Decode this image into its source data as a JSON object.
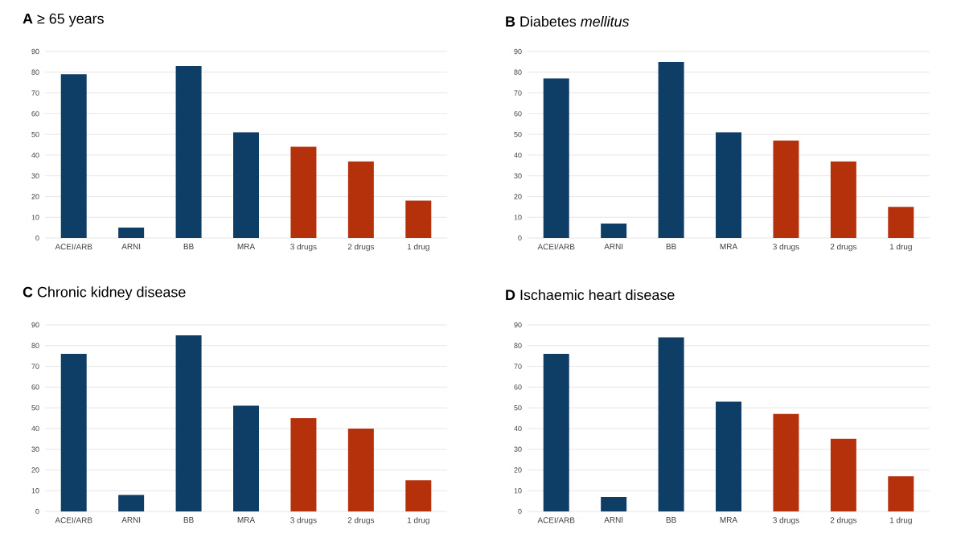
{
  "chart_data": [
    {
      "type": "bar",
      "title": "**A**  ≥ 65 years",
      "categories": [
        "ACEI/ARB",
        "ARNI",
        "BB",
        "MRA",
        "3 drugs",
        "2 drugs",
        "1 drug"
      ],
      "values": [
        79,
        5,
        83,
        51,
        44,
        37,
        18
      ],
      "colors": [
        "#0e3e66",
        "#0e3e66",
        "#0e3e66",
        "#0e3e66",
        "#b5310b",
        "#b5310b",
        "#b5310b"
      ],
      "ylim": [
        0,
        90
      ],
      "yticks": [
        0,
        10,
        20,
        30,
        40,
        50,
        60,
        70,
        80,
        90
      ],
      "grid": "y"
    },
    {
      "type": "bar",
      "title": "**B**  Diabetes *mellitus*",
      "categories": [
        "ACEI/ARB",
        "ARNI",
        "BB",
        "MRA",
        "3 drugs",
        "2 drugs",
        "1 drug"
      ],
      "values": [
        77,
        7,
        85,
        51,
        47,
        37,
        15
      ],
      "colors": [
        "#0e3e66",
        "#0e3e66",
        "#0e3e66",
        "#0e3e66",
        "#b5310b",
        "#b5310b",
        "#b5310b"
      ],
      "ylim": [
        0,
        90
      ],
      "yticks": [
        0,
        10,
        20,
        30,
        40,
        50,
        60,
        70,
        80,
        90
      ],
      "grid": "y"
    },
    {
      "type": "bar",
      "title": "**C**  Chronic kidney disease",
      "categories": [
        "ACEI/ARB",
        "ARNI",
        "BB",
        "MRA",
        "3 drugs",
        "2 drugs",
        "1 drug"
      ],
      "values": [
        76,
        8,
        85,
        51,
        45,
        40,
        15
      ],
      "colors": [
        "#0e3e66",
        "#0e3e66",
        "#0e3e66",
        "#0e3e66",
        "#b5310b",
        "#b5310b",
        "#b5310b"
      ],
      "ylim": [
        0,
        90
      ],
      "yticks": [
        0,
        10,
        20,
        30,
        40,
        50,
        60,
        70,
        80,
        90
      ],
      "grid": "y"
    },
    {
      "type": "bar",
      "title": "**D**  Ischaemic heart disease",
      "categories": [
        "ACEI/ARB",
        "ARNI",
        "BB",
        "MRA",
        "3 drugs",
        "2 drugs",
        "1 drug"
      ],
      "values": [
        76,
        7,
        84,
        53,
        47,
        35,
        17
      ],
      "colors": [
        "#0e3e66",
        "#0e3e66",
        "#0e3e66",
        "#0e3e66",
        "#b5310b",
        "#b5310b",
        "#b5310b"
      ],
      "ylim": [
        0,
        90
      ],
      "yticks": [
        0,
        10,
        20,
        30,
        40,
        50,
        60,
        70,
        80,
        90
      ],
      "grid": "y"
    }
  ]
}
